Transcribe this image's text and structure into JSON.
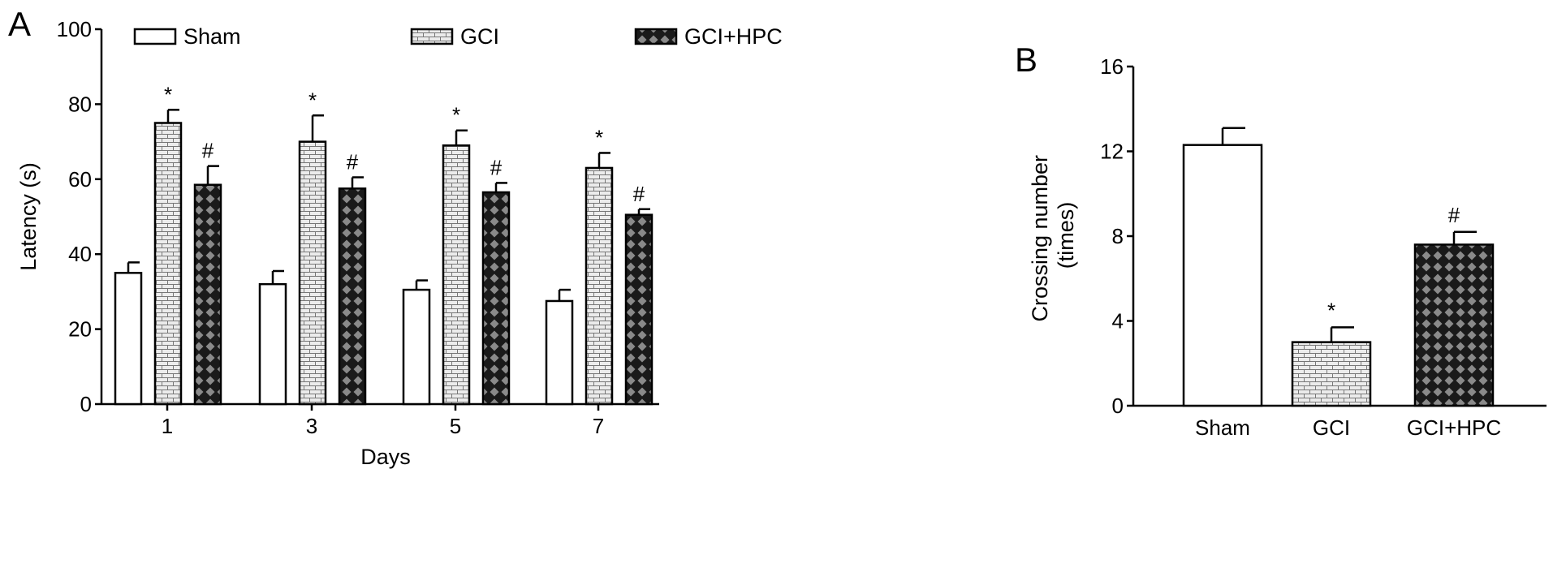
{
  "chart_data": [
    {
      "panel": "A",
      "type": "bar",
      "xlabel": "Days",
      "ylabel": "Latency (s)",
      "ylim": [
        0,
        100
      ],
      "yticks": [
        0,
        20,
        40,
        60,
        80,
        100
      ],
      "categories": [
        "1",
        "3",
        "5",
        "7"
      ],
      "legend": "top",
      "series": [
        {
          "name": "Sham",
          "pattern": "white",
          "values": [
            35,
            32,
            30.5,
            27.5
          ],
          "errors": [
            2.8,
            3.5,
            2.5,
            3
          ]
        },
        {
          "name": "GCI",
          "pattern": "brick",
          "values": [
            75,
            70,
            69,
            63
          ],
          "errors": [
            3.5,
            7,
            4,
            4
          ]
        },
        {
          "name": "GCI+HPC",
          "pattern": "diamond",
          "values": [
            58.5,
            57.5,
            56.5,
            50.5
          ],
          "errors": [
            5,
            3,
            2.5,
            1.5
          ]
        }
      ],
      "annotations": [
        {
          "series": "GCI",
          "category": "1",
          "text": "*"
        },
        {
          "series": "GCI+HPC",
          "category": "1",
          "text": "#"
        },
        {
          "series": "GCI",
          "category": "3",
          "text": "*"
        },
        {
          "series": "GCI+HPC",
          "category": "3",
          "text": "#"
        },
        {
          "series": "GCI",
          "category": "5",
          "text": "*"
        },
        {
          "series": "GCI+HPC",
          "category": "5",
          "text": "#"
        },
        {
          "series": "GCI",
          "category": "7",
          "text": "*"
        },
        {
          "series": "GCI+HPC",
          "category": "7",
          "text": "#"
        }
      ]
    },
    {
      "panel": "B",
      "type": "bar",
      "xlabel": "",
      "ylabel": [
        "Crossing number",
        "(times)"
      ],
      "ylim": [
        0,
        16
      ],
      "yticks": [
        0,
        4,
        8,
        12,
        16
      ],
      "categories": [
        "Sham",
        "GCI",
        "GCI+HPC"
      ],
      "patterns": [
        "white",
        "brick",
        "diamond"
      ],
      "values": [
        12.3,
        3,
        7.6
      ],
      "errors": [
        0.8,
        0.7,
        0.6
      ],
      "annotations": [
        {
          "category": "GCI",
          "text": "*"
        },
        {
          "category": "GCI+HPC",
          "text": "#"
        }
      ]
    }
  ]
}
